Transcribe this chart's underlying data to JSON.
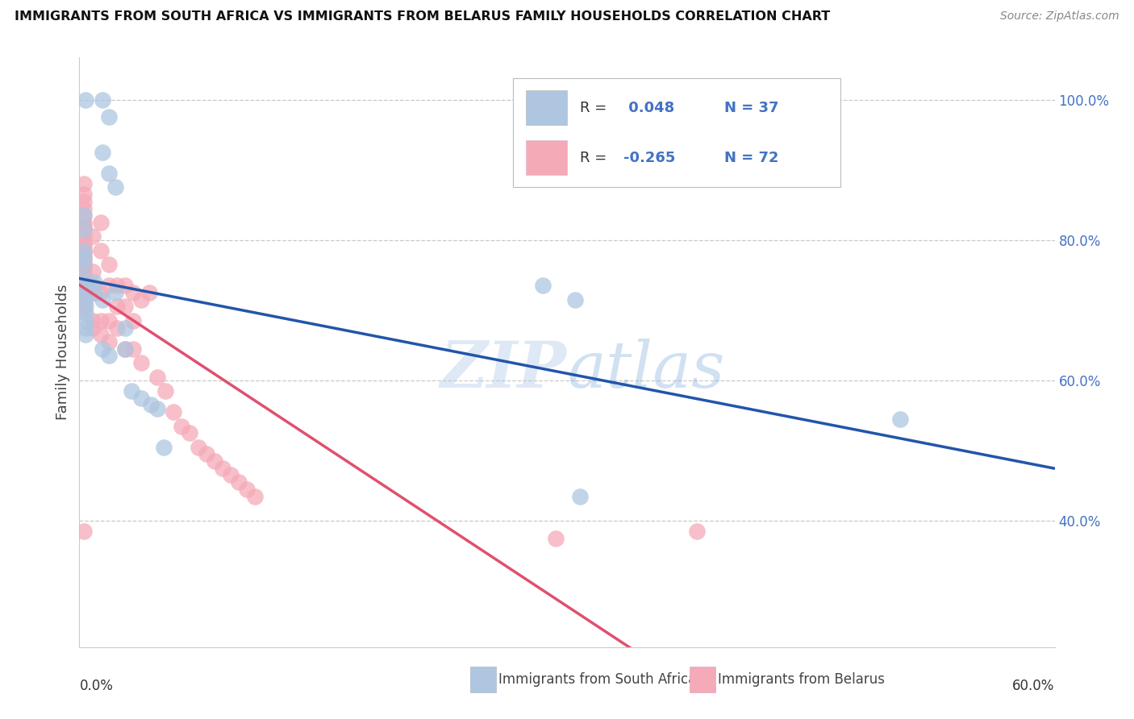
{
  "title": "IMMIGRANTS FROM SOUTH AFRICA VS IMMIGRANTS FROM BELARUS FAMILY HOUSEHOLDS CORRELATION CHART",
  "source": "Source: ZipAtlas.com",
  "ylabel": "Family Households",
  "ytick_labels": [
    "100.0%",
    "80.0%",
    "60.0%",
    "40.0%"
  ],
  "ytick_values": [
    1.0,
    0.8,
    0.6,
    0.4
  ],
  "xlim": [
    0.0,
    0.6
  ],
  "ylim": [
    0.22,
    1.06
  ],
  "legend_r1": " 0.048",
  "legend_n1": "37",
  "legend_r2": "-0.265",
  "legend_n2": "72",
  "blue_scatter_color": "#aec6e0",
  "blue_line_color": "#2255aa",
  "pink_scatter_color": "#f5aab8",
  "pink_line_color": "#e05070",
  "dashed_line_color": "#e8b8c8",
  "legend_text_color": "#4472c4",
  "watermark_color": "#ccdff0",
  "south_africa_x": [
    0.004,
    0.014,
    0.018,
    0.014,
    0.018,
    0.022,
    0.003,
    0.003,
    0.003,
    0.003,
    0.003,
    0.003,
    0.004,
    0.004,
    0.004,
    0.004,
    0.004,
    0.004,
    0.004,
    0.004,
    0.009,
    0.009,
    0.014,
    0.014,
    0.018,
    0.022,
    0.028,
    0.028,
    0.032,
    0.038,
    0.044,
    0.048,
    0.052,
    0.285,
    0.305,
    0.308,
    0.505
  ],
  "south_africa_y": [
    1.0,
    1.0,
    0.975,
    0.925,
    0.895,
    0.875,
    0.835,
    0.815,
    0.785,
    0.775,
    0.765,
    0.745,
    0.735,
    0.725,
    0.715,
    0.705,
    0.695,
    0.685,
    0.675,
    0.665,
    0.74,
    0.725,
    0.715,
    0.645,
    0.635,
    0.725,
    0.675,
    0.645,
    0.585,
    0.575,
    0.565,
    0.56,
    0.505,
    0.735,
    0.715,
    0.435,
    0.545
  ],
  "belarus_x": [
    0.003,
    0.003,
    0.003,
    0.003,
    0.003,
    0.003,
    0.003,
    0.003,
    0.003,
    0.003,
    0.003,
    0.003,
    0.003,
    0.003,
    0.003,
    0.003,
    0.003,
    0.003,
    0.003,
    0.003,
    0.003,
    0.003,
    0.003,
    0.003,
    0.003,
    0.003,
    0.003,
    0.003,
    0.003,
    0.008,
    0.008,
    0.008,
    0.008,
    0.008,
    0.008,
    0.013,
    0.013,
    0.013,
    0.013,
    0.013,
    0.018,
    0.018,
    0.018,
    0.018,
    0.023,
    0.023,
    0.023,
    0.028,
    0.028,
    0.028,
    0.033,
    0.033,
    0.033,
    0.038,
    0.038,
    0.043,
    0.048,
    0.053,
    0.058,
    0.063,
    0.068,
    0.073,
    0.078,
    0.083,
    0.088,
    0.093,
    0.098,
    0.103,
    0.108,
    0.293,
    0.003,
    0.38
  ],
  "belarus_y": [
    0.88,
    0.865,
    0.855,
    0.845,
    0.835,
    0.825,
    0.82,
    0.815,
    0.805,
    0.795,
    0.79,
    0.785,
    0.78,
    0.775,
    0.77,
    0.765,
    0.76,
    0.755,
    0.75,
    0.745,
    0.74,
    0.735,
    0.73,
    0.725,
    0.72,
    0.715,
    0.71,
    0.705,
    0.7,
    0.805,
    0.755,
    0.735,
    0.725,
    0.685,
    0.675,
    0.825,
    0.785,
    0.725,
    0.685,
    0.665,
    0.765,
    0.735,
    0.685,
    0.655,
    0.735,
    0.705,
    0.675,
    0.735,
    0.705,
    0.645,
    0.725,
    0.685,
    0.645,
    0.715,
    0.625,
    0.725,
    0.605,
    0.585,
    0.555,
    0.535,
    0.525,
    0.505,
    0.495,
    0.485,
    0.475,
    0.465,
    0.455,
    0.445,
    0.435,
    0.375,
    0.385,
    0.385
  ]
}
